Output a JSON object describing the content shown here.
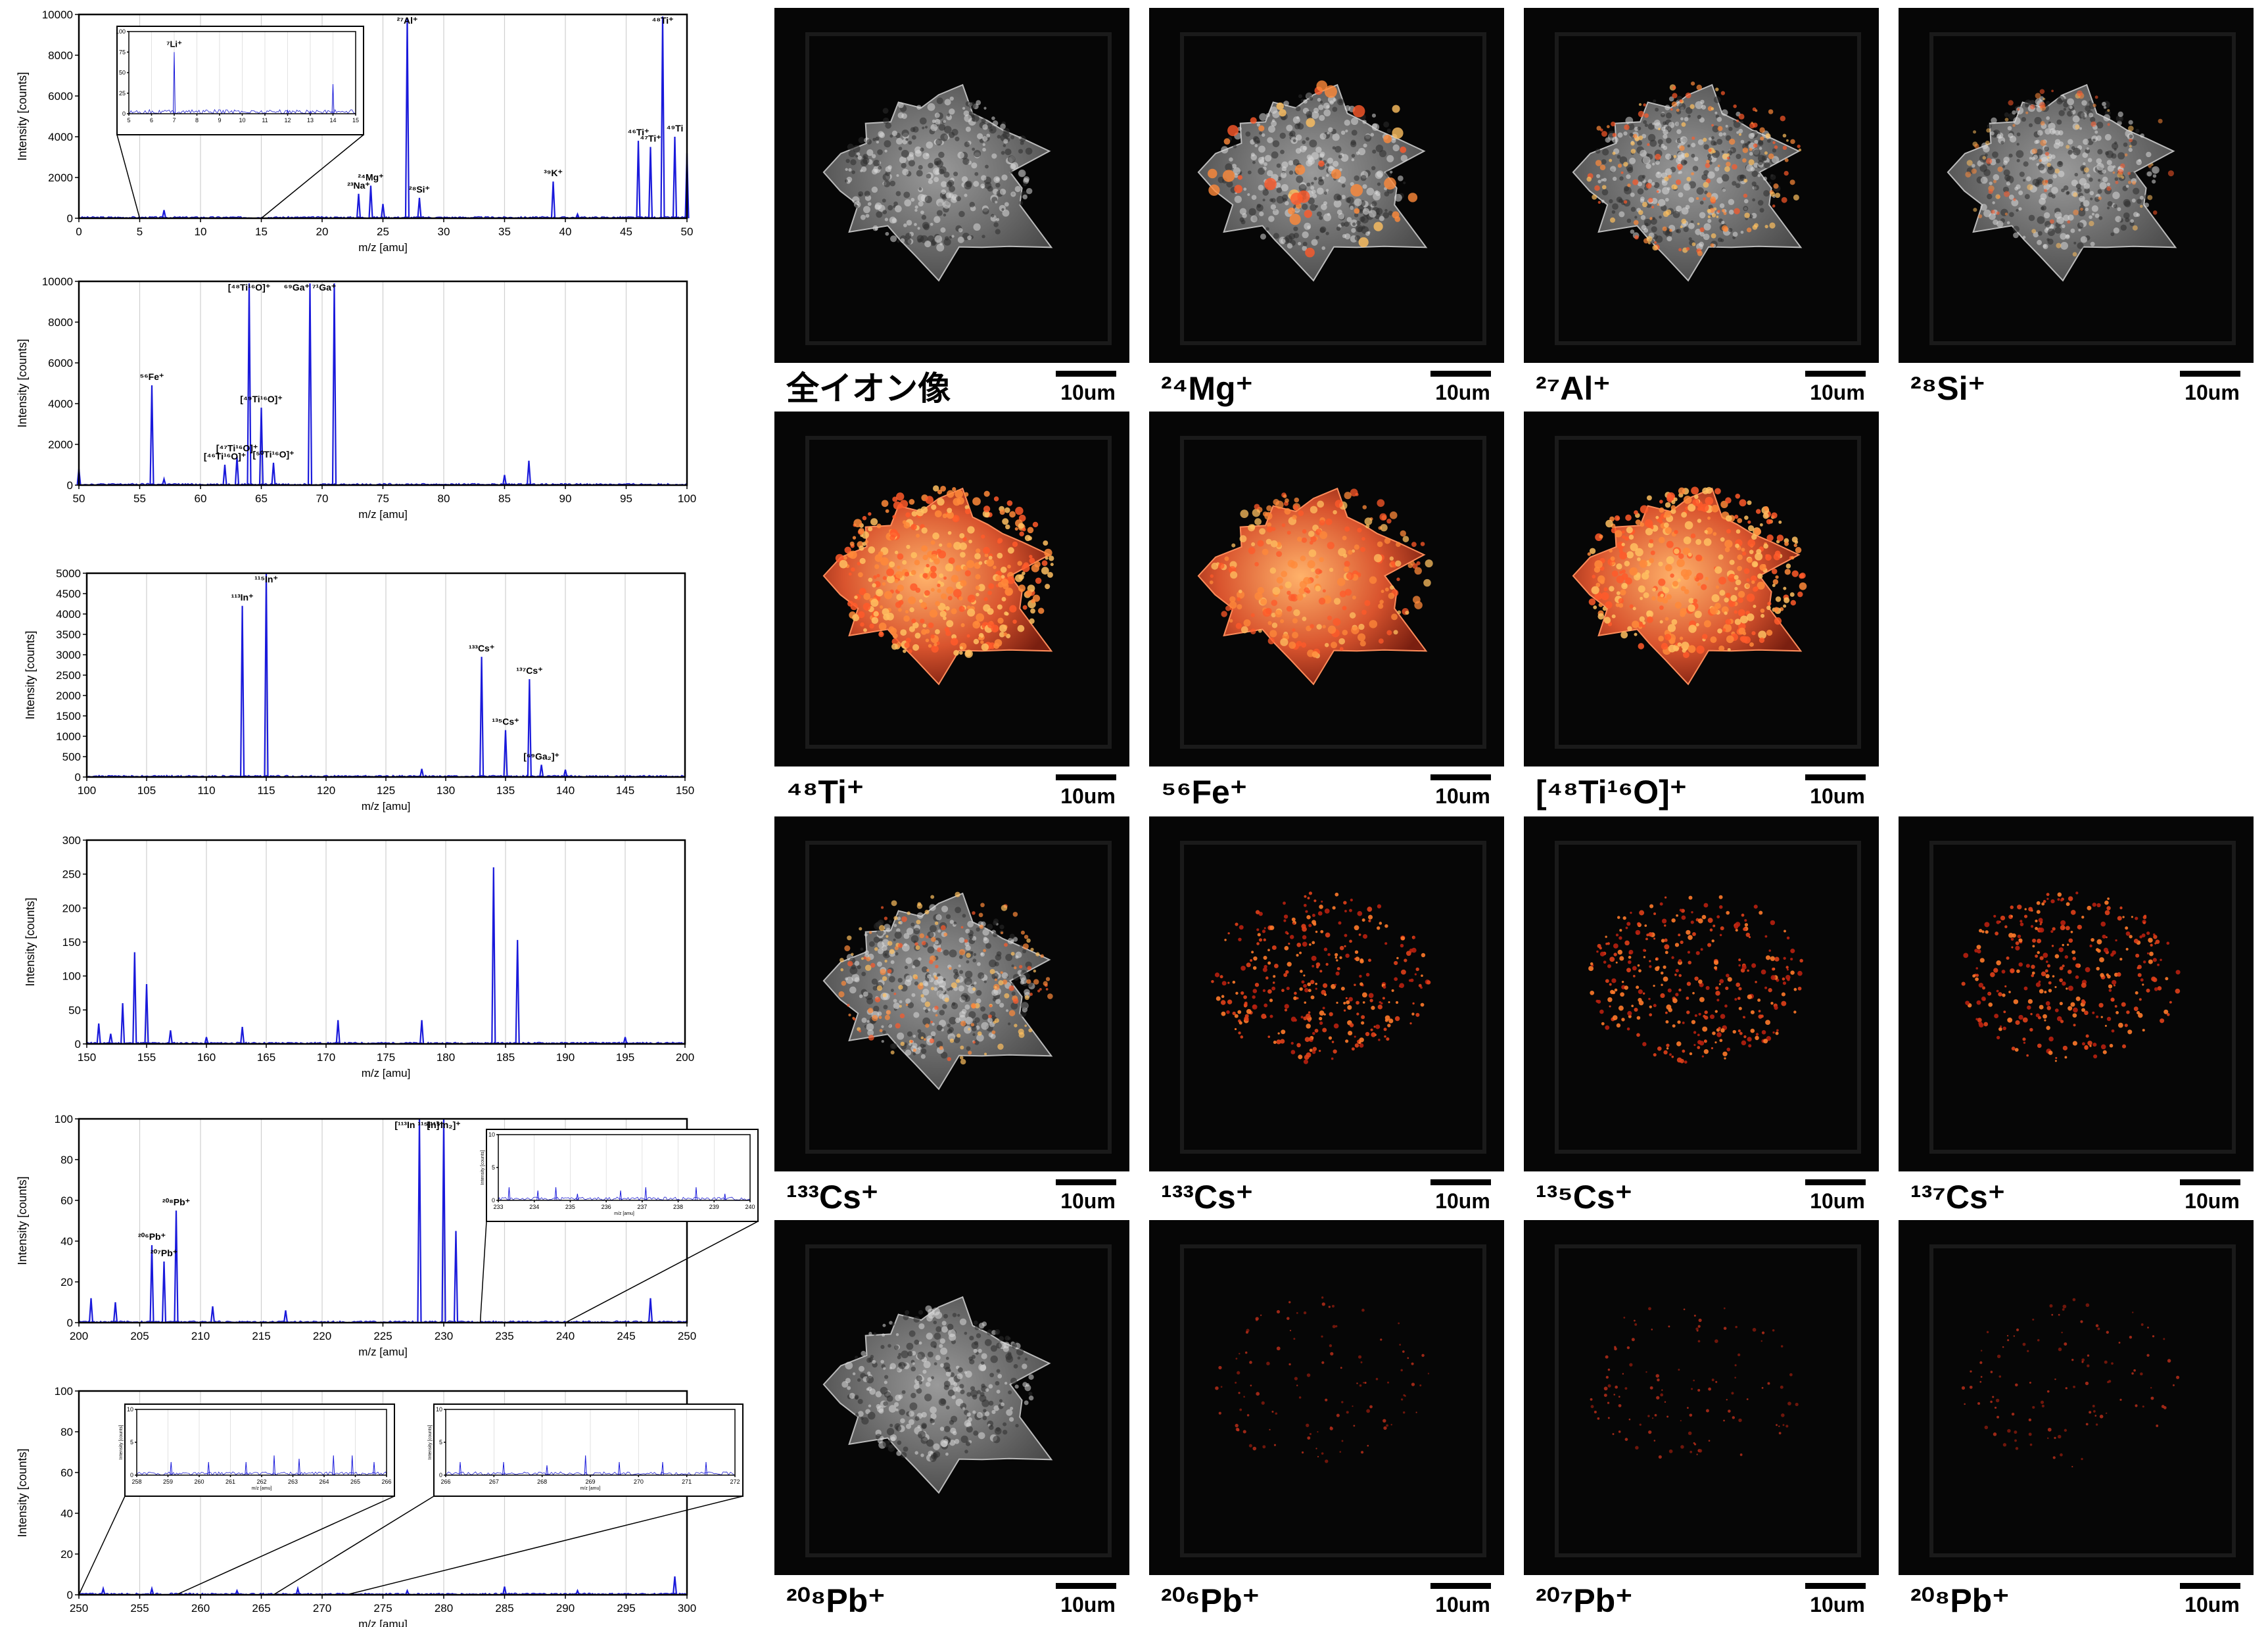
{
  "chart_data": [
    {
      "type": "line",
      "xlabel": "m/z [amu]",
      "ylabel": "Intensity [counts]",
      "xlim": [
        0,
        50
      ],
      "ylim": [
        0,
        10000
      ],
      "xticks": [
        0,
        5,
        10,
        15,
        20,
        25,
        30,
        35,
        40,
        45,
        50
      ],
      "yticks": [
        0,
        2000,
        4000,
        6000,
        8000,
        10000
      ],
      "color": "#1a1adb",
      "peaks": [
        [
          7,
          400
        ],
        [
          23,
          1200
        ],
        [
          24,
          1600
        ],
        [
          25,
          700
        ],
        [
          27,
          9800
        ],
        [
          28,
          1000
        ],
        [
          39,
          1800
        ],
        [
          41,
          200
        ],
        [
          46,
          3800
        ],
        [
          47,
          3500
        ],
        [
          48,
          9900
        ],
        [
          49,
          4000
        ],
        [
          50,
          3200
        ]
      ],
      "annotations": [
        {
          "x": 23,
          "y": 1200,
          "text": "²³Na⁺"
        },
        {
          "x": 24,
          "y": 1600,
          "text": "²⁴Mg⁺"
        },
        {
          "x": 27,
          "y": 9800,
          "text": "²⁷Al⁺"
        },
        {
          "x": 28,
          "y": 1000,
          "text": "²⁸Si⁺"
        },
        {
          "x": 39,
          "y": 1800,
          "text": "³⁹K⁺"
        },
        {
          "x": 46,
          "y": 3800,
          "text": "⁴⁶Ti⁺"
        },
        {
          "x": 47,
          "y": 3500,
          "text": "⁴⁷Ti⁺"
        },
        {
          "x": 48,
          "y": 9900,
          "text": "⁴⁸Ti⁺"
        },
        {
          "x": 49,
          "y": 4000,
          "text": "⁴⁹Ti"
        }
      ],
      "inset": {
        "xlim": [
          5,
          15
        ],
        "ylim": [
          0,
          100
        ],
        "xticks": [
          5,
          6,
          7,
          8,
          9,
          10,
          11,
          12,
          13,
          14,
          15
        ],
        "yticks": [
          0,
          25,
          50,
          75,
          100
        ],
        "peaks": [
          [
            7,
            75
          ],
          [
            12,
            4
          ],
          [
            13,
            3
          ],
          [
            14,
            36
          ]
        ],
        "annotations": [
          {
            "x": 7,
            "y": 75,
            "text": "⁷Li⁺"
          }
        ],
        "zoom_from": [
          5,
          15
        ]
      }
    },
    {
      "type": "line",
      "xlabel": "m/z [amu]",
      "ylabel": "Intensity [counts]",
      "xlim": [
        50,
        100
      ],
      "ylim": [
        0,
        10000
      ],
      "xticks": [
        50,
        55,
        60,
        65,
        70,
        75,
        80,
        85,
        90,
        95,
        100
      ],
      "yticks": [
        0,
        2000,
        4000,
        6000,
        8000,
        10000
      ],
      "color": "#1a1adb",
      "peaks": [
        [
          50,
          800
        ],
        [
          56,
          4900
        ],
        [
          57,
          300
        ],
        [
          62,
          1000
        ],
        [
          63,
          1400
        ],
        [
          64,
          9900
        ],
        [
          65,
          3800
        ],
        [
          66,
          1100
        ],
        [
          69,
          9900
        ],
        [
          71,
          9900
        ],
        [
          85,
          500
        ],
        [
          87,
          1200
        ]
      ],
      "annotations": [
        {
          "x": 56,
          "y": 4900,
          "text": "⁵⁶Fe⁺"
        },
        {
          "x": 62,
          "y": 1000,
          "text": "[⁴⁶Ti¹⁶O]⁺"
        },
        {
          "x": 63,
          "y": 1400,
          "text": "[⁴⁷Ti¹⁶O]⁺"
        },
        {
          "x": 64,
          "y": 9900,
          "text": "[⁴⁸Ti¹⁶O]⁺"
        },
        {
          "x": 65,
          "y": 3800,
          "text": "[⁴⁹Ti¹⁶O]⁺"
        },
        {
          "x": 66,
          "y": 1100,
          "text": "[⁵⁰Ti¹⁶O]⁺"
        },
        {
          "x": 69,
          "y": 9900,
          "text": "⁶⁹Ga⁺ ⁷¹Ga⁺"
        }
      ]
    },
    {
      "type": "line",
      "xlabel": "m/z [amu]",
      "ylabel": "Intensity [counts]",
      "xlim": [
        100,
        150
      ],
      "ylim": [
        0,
        5000
      ],
      "xticks": [
        100,
        105,
        110,
        115,
        120,
        125,
        130,
        135,
        140,
        145,
        150
      ],
      "yticks": [
        0,
        500,
        1000,
        1500,
        2000,
        2500,
        3000,
        3500,
        4000,
        4500,
        5000
      ],
      "color": "#1a1adb",
      "peaks": [
        [
          113,
          4200
        ],
        [
          115,
          5000
        ],
        [
          128,
          200
        ],
        [
          133,
          2950
        ],
        [
          135,
          1150
        ],
        [
          137,
          2400
        ],
        [
          138,
          300
        ],
        [
          140,
          180
        ]
      ],
      "annotations": [
        {
          "x": 113,
          "y": 4200,
          "text": "¹¹³In⁺"
        },
        {
          "x": 115,
          "y": 5000,
          "text": "¹¹⁵In⁺"
        },
        {
          "x": 133,
          "y": 2950,
          "text": "¹³³Cs⁺"
        },
        {
          "x": 135,
          "y": 1150,
          "text": "¹³⁵Cs⁺"
        },
        {
          "x": 137,
          "y": 2400,
          "text": "¹³⁷Cs⁺"
        },
        {
          "x": 138,
          "y": 300,
          "text": "[⁶⁹Ga₂]⁺"
        }
      ]
    },
    {
      "type": "line",
      "xlabel": "m/z [amu]",
      "ylabel": "Intensity [counts]",
      "xlim": [
        150,
        200
      ],
      "ylim": [
        0,
        300
      ],
      "xticks": [
        150,
        155,
        160,
        165,
        170,
        175,
        180,
        185,
        190,
        195,
        200
      ],
      "yticks": [
        0,
        50,
        100,
        150,
        200,
        250,
        300
      ],
      "color": "#1a1adb",
      "peaks": [
        [
          151,
          30
        ],
        [
          152,
          15
        ],
        [
          153,
          60
        ],
        [
          154,
          135
        ],
        [
          155,
          88
        ],
        [
          157,
          20
        ],
        [
          160,
          10
        ],
        [
          163,
          25
        ],
        [
          171,
          35
        ],
        [
          178,
          35
        ],
        [
          184,
          260
        ],
        [
          186,
          153
        ],
        [
          195,
          10
        ]
      ],
      "annotations": []
    },
    {
      "type": "line",
      "xlabel": "m/z [amu]",
      "ylabel": "Intensity [counts]",
      "xlim": [
        200,
        250
      ],
      "ylim": [
        0,
        100
      ],
      "xticks": [
        200,
        205,
        210,
        215,
        220,
        225,
        230,
        235,
        240,
        245,
        250
      ],
      "yticks": [
        0,
        20,
        40,
        60,
        80,
        100
      ],
      "color": "#1a1adb",
      "peaks": [
        [
          201,
          12
        ],
        [
          203,
          10
        ],
        [
          206,
          38
        ],
        [
          207,
          30
        ],
        [
          208,
          55
        ],
        [
          211,
          8
        ],
        [
          217,
          6
        ],
        [
          228,
          100
        ],
        [
          230,
          100
        ],
        [
          231,
          45
        ],
        [
          247,
          12
        ]
      ],
      "annotations": [
        {
          "x": 206,
          "y": 38,
          "text": "²⁰⁶Pb⁺"
        },
        {
          "x": 207,
          "y": 30,
          "text": "²⁰⁷Pb⁺"
        },
        {
          "x": 208,
          "y": 55,
          "text": "²⁰⁸Pb⁺"
        },
        {
          "x": 228,
          "y": 100,
          "text": "[¹¹³In ¹¹⁵In]⁺"
        },
        {
          "x": 230,
          "y": 100,
          "text": "[¹¹⁵In₂]⁺"
        }
      ],
      "inset": {
        "xlim": [
          233,
          240
        ],
        "ylim": [
          0,
          10
        ],
        "xticks": [
          233,
          234,
          235,
          236,
          237,
          238,
          239,
          240
        ],
        "yticks": [
          0,
          5,
          10
        ],
        "xlabel": "m/z [amu]",
        "ylabel": "Intensity [counts]",
        "peaks": [
          [
            233.3,
            2
          ],
          [
            234.1,
            1.5
          ],
          [
            234.6,
            2
          ],
          [
            235.2,
            1
          ],
          [
            236.4,
            1.5
          ],
          [
            237.1,
            2
          ],
          [
            238.5,
            2
          ],
          [
            239.3,
            1
          ]
        ],
        "zoom_from": [
          233,
          240
        ]
      }
    },
    {
      "type": "line",
      "xlabel": "m/z [amu]",
      "ylabel": "Intensity [counts]",
      "xlim": [
        250,
        300
      ],
      "ylim": [
        0,
        100
      ],
      "xticks": [
        250,
        255,
        260,
        265,
        270,
        275,
        280,
        285,
        290,
        295,
        300
      ],
      "yticks": [
        0,
        20,
        40,
        60,
        80,
        100
      ],
      "color": "#1a1adb",
      "peaks": [
        [
          252,
          3
        ],
        [
          256,
          3
        ],
        [
          263,
          2
        ],
        [
          268,
          3
        ],
        [
          277,
          2
        ],
        [
          285,
          4
        ],
        [
          291,
          2
        ],
        [
          299,
          9
        ]
      ],
      "annotations": [],
      "insets": [
        {
          "xlim": [
            258,
            266
          ],
          "ylim": [
            0,
            10
          ],
          "xticks": [
            258,
            259,
            260,
            261,
            262,
            263,
            264,
            265,
            266
          ],
          "yticks": [
            0,
            5,
            10
          ],
          "xlabel": "m/z [amu]",
          "ylabel": "Intensity [counts]",
          "peaks": [
            [
              259.1,
              2
            ],
            [
              260.3,
              2
            ],
            [
              261.5,
              2
            ],
            [
              262.4,
              3
            ],
            [
              263.2,
              2.5
            ],
            [
              264.3,
              3
            ],
            [
              264.9,
              3
            ],
            [
              265.6,
              2
            ]
          ],
          "zoom_from": [
            250,
            258
          ]
        },
        {
          "xlim": [
            266,
            272
          ],
          "ylim": [
            0,
            10
          ],
          "xticks": [
            266,
            267,
            268,
            269,
            270,
            271,
            272
          ],
          "yticks": [
            0,
            5,
            10
          ],
          "xlabel": "m/z [amu]",
          "ylabel": "Intensity [counts]",
          "peaks": [
            [
              266.3,
              2
            ],
            [
              267.2,
              2
            ],
            [
              268.1,
              1.5
            ],
            [
              268.9,
              3
            ],
            [
              269.6,
              2
            ],
            [
              270.5,
              2
            ],
            [
              271.4,
              2
            ]
          ],
          "zoom_from": [
            266,
            272
          ]
        }
      ]
    }
  ],
  "images": {
    "scale_label": "10um",
    "tiles": [
      {
        "row": 0,
        "col": 0,
        "style": "gray",
        "hot": "none",
        "label": "全イオン像"
      },
      {
        "row": 0,
        "col": 1,
        "style": "gray",
        "hot": "spots",
        "label": "²⁴Mg⁺"
      },
      {
        "row": 0,
        "col": 2,
        "style": "gray",
        "hot": "sparse",
        "label": "²⁷Al⁺"
      },
      {
        "row": 0,
        "col": 3,
        "style": "gray",
        "hot": "faint",
        "label": "²⁸Si⁺"
      },
      {
        "row": 1,
        "col": 0,
        "style": "red",
        "hot": "full",
        "label": "⁴⁸Ti⁺"
      },
      {
        "row": 1,
        "col": 1,
        "style": "red",
        "hot": "mixed",
        "label": "⁵⁶Fe⁺"
      },
      {
        "row": 1,
        "col": 2,
        "style": "red",
        "hot": "full",
        "label": "[⁴⁸Ti¹⁶O]⁺"
      },
      {
        "row": 2,
        "col": 0,
        "style": "gray",
        "hot": "sparse",
        "label": "¹³³Cs⁺"
      },
      {
        "row": 2,
        "col": 1,
        "style": "dark",
        "hot": "dots",
        "label": "¹³³Cs⁺"
      },
      {
        "row": 2,
        "col": 2,
        "style": "dark",
        "hot": "dots",
        "label": "¹³⁵Cs⁺"
      },
      {
        "row": 2,
        "col": 3,
        "style": "dark",
        "hot": "dots",
        "label": "¹³⁷Cs⁺"
      },
      {
        "row": 3,
        "col": 0,
        "style": "gray",
        "hot": "none",
        "label": "²⁰⁸Pb⁺"
      },
      {
        "row": 3,
        "col": 1,
        "style": "dark",
        "hot": "fewdots",
        "label": "²⁰⁶Pb⁺"
      },
      {
        "row": 3,
        "col": 2,
        "style": "dark",
        "hot": "fewdots",
        "label": "²⁰⁷Pb⁺"
      },
      {
        "row": 3,
        "col": 3,
        "style": "dark",
        "hot": "fewdots",
        "label": "²⁰⁸Pb⁺"
      }
    ]
  }
}
